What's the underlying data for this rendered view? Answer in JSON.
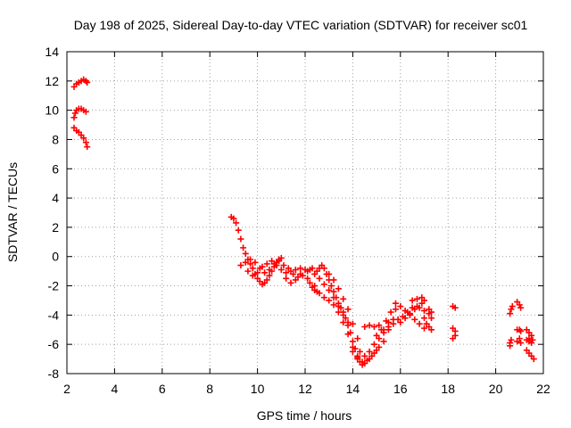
{
  "chart_data": {
    "type": "scatter",
    "title": "Day 198 of 2025, Sidereal Day-to-day VTEC variation (SDTVAR) for receiver sc01",
    "xlabel": "GPS time / hours",
    "ylabel": "SDTVAR / TECUs",
    "xlim": [
      2,
      22
    ],
    "ylim": [
      -8,
      14
    ],
    "xticks": [
      2,
      4,
      6,
      8,
      10,
      12,
      14,
      16,
      18,
      20,
      22
    ],
    "yticks": [
      -8,
      -6,
      -4,
      -2,
      0,
      2,
      4,
      6,
      8,
      10,
      12,
      14
    ],
    "grid": true,
    "marker": "+",
    "color": "#ff0000",
    "series": [
      {
        "name": "sc01",
        "points": [
          [
            2.3,
            11.6
          ],
          [
            2.4,
            11.8
          ],
          [
            2.5,
            11.9
          ],
          [
            2.6,
            12.0
          ],
          [
            2.7,
            12.1
          ],
          [
            2.8,
            12.0
          ],
          [
            2.85,
            11.9
          ],
          [
            2.3,
            9.5
          ],
          [
            2.35,
            9.8
          ],
          [
            2.4,
            10.0
          ],
          [
            2.5,
            10.1
          ],
          [
            2.6,
            10.1
          ],
          [
            2.7,
            10.0
          ],
          [
            2.8,
            9.9
          ],
          [
            2.3,
            8.8
          ],
          [
            2.4,
            8.6
          ],
          [
            2.5,
            8.5
          ],
          [
            2.6,
            8.3
          ],
          [
            2.7,
            8.1
          ],
          [
            2.8,
            7.8
          ],
          [
            2.85,
            7.5
          ],
          [
            8.9,
            2.7
          ],
          [
            9.0,
            2.6
          ],
          [
            9.1,
            2.3
          ],
          [
            9.2,
            1.8
          ],
          [
            9.3,
            1.2
          ],
          [
            9.4,
            0.6
          ],
          [
            9.5,
            0.2
          ],
          [
            9.6,
            -0.2
          ],
          [
            9.7,
            -0.5
          ],
          [
            9.8,
            -0.8
          ],
          [
            9.9,
            -1.2
          ],
          [
            10.0,
            -1.5
          ],
          [
            10.1,
            -1.7
          ],
          [
            10.2,
            -1.9
          ],
          [
            10.3,
            -1.8
          ],
          [
            10.4,
            -1.6
          ],
          [
            10.5,
            -1.3
          ],
          [
            10.6,
            -1.0
          ],
          [
            10.7,
            -0.7
          ],
          [
            10.8,
            -0.4
          ],
          [
            10.9,
            -0.2
          ],
          [
            11.0,
            -0.1
          ],
          [
            9.3,
            -0.6
          ],
          [
            9.5,
            -0.4
          ],
          [
            9.7,
            -0.2
          ],
          [
            9.9,
            -0.4
          ],
          [
            10.1,
            -0.8
          ],
          [
            10.3,
            -1.1
          ],
          [
            10.5,
            -0.9
          ],
          [
            10.7,
            -0.5
          ],
          [
            10.9,
            -0.3
          ],
          [
            9.6,
            -1.0
          ],
          [
            9.8,
            -1.3
          ],
          [
            10.0,
            -1.1
          ],
          [
            10.2,
            -0.7
          ],
          [
            10.4,
            -0.5
          ],
          [
            10.6,
            -0.3
          ],
          [
            10.8,
            -0.6
          ],
          [
            11.0,
            -0.9
          ],
          [
            11.2,
            -1.1
          ],
          [
            11.4,
            -1.0
          ],
          [
            11.6,
            -0.9
          ],
          [
            11.8,
            -0.8
          ],
          [
            11.1,
            -0.6
          ],
          [
            11.3,
            -0.8
          ],
          [
            11.5,
            -1.2
          ],
          [
            11.7,
            -1.4
          ],
          [
            11.9,
            -1.3
          ],
          [
            12.1,
            -1.0
          ],
          [
            12.3,
            -0.8
          ],
          [
            11.2,
            -1.5
          ],
          [
            11.4,
            -1.8
          ],
          [
            11.6,
            -1.6
          ],
          [
            11.8,
            -1.2
          ],
          [
            12.0,
            -0.9
          ],
          [
            12.2,
            -0.9
          ],
          [
            12.4,
            -1.2
          ],
          [
            12.1,
            -1.5
          ],
          [
            12.2,
            -1.8
          ],
          [
            12.3,
            -2.1
          ],
          [
            12.4,
            -2.3
          ],
          [
            12.5,
            -2.4
          ],
          [
            12.5,
            -1.0
          ],
          [
            12.6,
            -0.8
          ],
          [
            12.7,
            -0.6
          ],
          [
            12.8,
            -0.8
          ],
          [
            12.9,
            -1.2
          ],
          [
            13.0,
            -1.6
          ],
          [
            13.1,
            -2.0
          ],
          [
            13.2,
            -2.4
          ],
          [
            13.3,
            -2.8
          ],
          [
            13.4,
            -3.2
          ],
          [
            13.5,
            -3.5
          ],
          [
            13.6,
            -3.8
          ],
          [
            13.7,
            -4.2
          ],
          [
            13.8,
            -4.7
          ],
          [
            13.9,
            -5.2
          ],
          [
            14.0,
            -5.8
          ],
          [
            14.1,
            -6.3
          ],
          [
            14.2,
            -6.8
          ],
          [
            14.3,
            -7.2
          ],
          [
            14.4,
            -7.4
          ],
          [
            12.6,
            -1.5
          ],
          [
            12.8,
            -1.9
          ],
          [
            13.0,
            -2.3
          ],
          [
            13.2,
            -2.8
          ],
          [
            13.4,
            -3.4
          ],
          [
            13.6,
            -4.0
          ],
          [
            13.8,
            -4.5
          ],
          [
            13.0,
            -1.2
          ],
          [
            13.2,
            -1.6
          ],
          [
            13.4,
            -2.2
          ],
          [
            13.6,
            -2.9
          ],
          [
            13.8,
            -3.6
          ],
          [
            14.0,
            -4.6
          ],
          [
            14.2,
            -5.6
          ],
          [
            12.4,
            -2.0
          ],
          [
            12.6,
            -2.5
          ],
          [
            12.8,
            -2.8
          ],
          [
            13.0,
            -3.0
          ],
          [
            13.2,
            -3.3
          ],
          [
            13.4,
            -3.8
          ],
          [
            13.6,
            -4.5
          ],
          [
            13.8,
            -5.3
          ],
          [
            14.0,
            -6.2
          ],
          [
            14.2,
            -6.9
          ],
          [
            14.4,
            -7.2
          ],
          [
            14.6,
            -7.1
          ],
          [
            14.8,
            -6.8
          ],
          [
            15.0,
            -6.4
          ],
          [
            14.0,
            -6.5
          ],
          [
            14.2,
            -7.0
          ],
          [
            14.5,
            -7.3
          ],
          [
            14.7,
            -7.0
          ],
          [
            14.9,
            -6.6
          ],
          [
            15.1,
            -6.2
          ],
          [
            15.3,
            -5.8
          ],
          [
            14.3,
            -6.5
          ],
          [
            14.5,
            -6.8
          ],
          [
            14.7,
            -6.5
          ],
          [
            14.9,
            -6.0
          ],
          [
            15.1,
            -5.6
          ],
          [
            15.3,
            -5.2
          ],
          [
            15.5,
            -4.8
          ],
          [
            14.5,
            -4.8
          ],
          [
            14.7,
            -4.7
          ],
          [
            14.9,
            -4.8
          ],
          [
            15.1,
            -4.7
          ],
          [
            15.3,
            -5.0
          ],
          [
            15.5,
            -4.5
          ],
          [
            15.7,
            -4.3
          ],
          [
            15.0,
            -5.4
          ],
          [
            15.2,
            -5.0
          ],
          [
            15.4,
            -4.4
          ],
          [
            15.6,
            -3.8
          ],
          [
            15.8,
            -3.2
          ],
          [
            15.5,
            -5.0
          ],
          [
            15.7,
            -4.6
          ],
          [
            15.9,
            -4.3
          ],
          [
            16.1,
            -4.1
          ],
          [
            16.3,
            -3.8
          ],
          [
            16.5,
            -3.5
          ],
          [
            16.7,
            -3.4
          ],
          [
            16.9,
            -3.2
          ],
          [
            17.0,
            -3.0
          ],
          [
            16.0,
            -4.5
          ],
          [
            16.2,
            -4.2
          ],
          [
            16.4,
            -3.9
          ],
          [
            16.6,
            -3.6
          ],
          [
            16.8,
            -3.5
          ],
          [
            17.0,
            -3.7
          ],
          [
            17.2,
            -3.9
          ],
          [
            15.8,
            -3.6
          ],
          [
            16.0,
            -3.4
          ],
          [
            16.2,
            -3.7
          ],
          [
            16.4,
            -4.0
          ],
          [
            16.6,
            -4.3
          ],
          [
            16.8,
            -4.6
          ],
          [
            17.0,
            -4.9
          ],
          [
            16.5,
            -3.0
          ],
          [
            16.7,
            -2.9
          ],
          [
            16.9,
            -2.8
          ],
          [
            17.0,
            -4.2
          ],
          [
            17.1,
            -4.6
          ],
          [
            17.2,
            -4.8
          ],
          [
            17.3,
            -5.0
          ],
          [
            17.2,
            -3.6
          ],
          [
            17.3,
            -3.8
          ],
          [
            17.3,
            -4.2
          ],
          [
            18.2,
            -3.4
          ],
          [
            18.3,
            -3.5
          ],
          [
            18.2,
            -4.9
          ],
          [
            18.3,
            -5.1
          ],
          [
            18.3,
            -5.4
          ],
          [
            18.2,
            -5.6
          ],
          [
            20.6,
            -3.9
          ],
          [
            20.65,
            -3.6
          ],
          [
            20.7,
            -3.4
          ],
          [
            20.6,
            -5.9
          ],
          [
            20.65,
            -5.7
          ],
          [
            20.6,
            -6.1
          ],
          [
            20.9,
            -3.1
          ],
          [
            21.0,
            -3.3
          ],
          [
            21.05,
            -3.5
          ],
          [
            20.9,
            -5.0
          ],
          [
            21.0,
            -5.0
          ],
          [
            21.05,
            -5.1
          ],
          [
            20.9,
            -5.8
          ],
          [
            21.0,
            -5.6
          ],
          [
            21.05,
            -5.9
          ],
          [
            21.3,
            -5.0
          ],
          [
            21.4,
            -5.2
          ],
          [
            21.5,
            -5.4
          ],
          [
            21.3,
            -5.7
          ],
          [
            21.4,
            -5.8
          ],
          [
            21.5,
            -5.9
          ],
          [
            21.3,
            -6.4
          ],
          [
            21.4,
            -6.6
          ],
          [
            21.5,
            -6.8
          ],
          [
            21.6,
            -7.0
          ],
          [
            21.4,
            -5.6
          ],
          [
            21.55,
            -5.7
          ]
        ]
      }
    ]
  }
}
